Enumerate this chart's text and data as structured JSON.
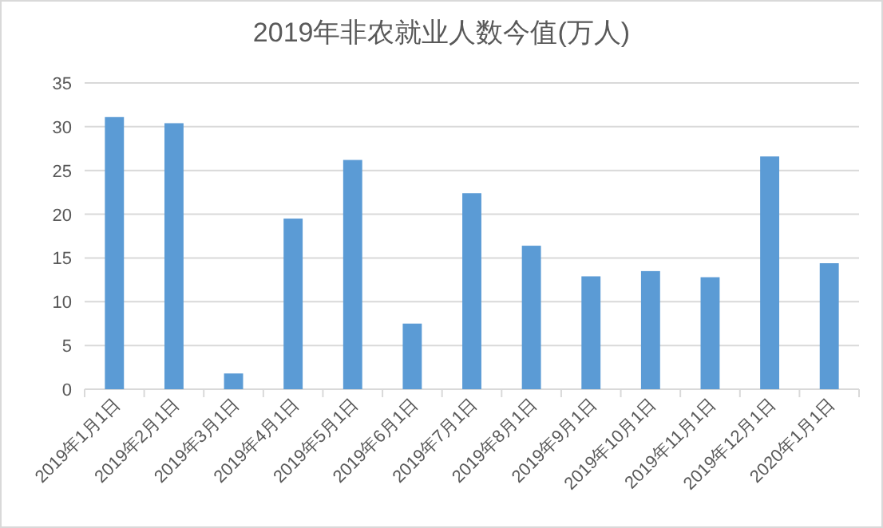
{
  "chart_data": {
    "type": "bar",
    "title": "2019年非农就业人数今值(万人)",
    "categories": [
      "2019年1月1日",
      "2019年2月1日",
      "2019年3月1日",
      "2019年4月1日",
      "2019年5月1日",
      "2019年6月1日",
      "2019年7月1日",
      "2019年8月1日",
      "2019年9月1日",
      "2019年10月1日",
      "2019年11月1日",
      "2019年12月1日",
      "2020年1月1日"
    ],
    "values": [
      31.1,
      30.4,
      1.8,
      19.5,
      26.2,
      7.5,
      22.4,
      16.4,
      12.9,
      13.5,
      12.8,
      26.6,
      14.4
    ],
    "color": "#5b9bd5",
    "ylim": [
      0,
      35
    ],
    "yticks": [
      0,
      5,
      10,
      15,
      20,
      25,
      30,
      35
    ],
    "grid": "y"
  }
}
